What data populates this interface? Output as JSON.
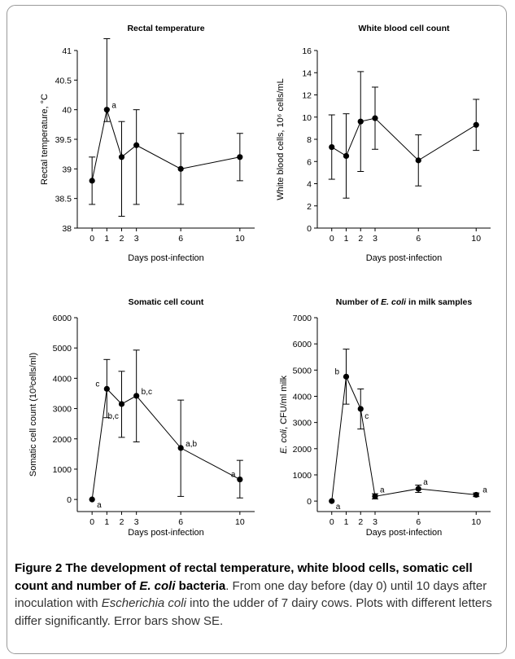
{
  "chart_data": [
    {
      "type": "line",
      "title": "Rectal temperature",
      "xlabel": "Days post-infection",
      "ylabel": "Rectal temperature, °C",
      "x": [
        0,
        1,
        2,
        3,
        6,
        10
      ],
      "x_ticks": [
        0,
        1,
        2,
        3,
        6,
        10
      ],
      "ylim": [
        38,
        41
      ],
      "y_ticks": [
        38,
        38.5,
        39,
        39.5,
        40,
        40.5,
        41
      ],
      "series": [
        {
          "values": [
            38.8,
            40.0,
            39.2,
            39.4,
            39.0,
            39.2
          ],
          "error_low": [
            38.4,
            39.8,
            38.2,
            38.4,
            38.4,
            38.8
          ],
          "error_high": [
            39.2,
            41.2,
            39.8,
            40.0,
            39.6,
            39.6
          ],
          "labels": [
            "",
            "a",
            "",
            "",
            "",
            ""
          ]
        }
      ]
    },
    {
      "type": "line",
      "title": "White blood cell count",
      "xlabel": "Days post-infection",
      "ylabel": "White blood cells, 10⁶ cells/mL",
      "x": [
        0,
        1,
        2,
        3,
        6,
        10
      ],
      "x_ticks": [
        0,
        1,
        2,
        3,
        6,
        10
      ],
      "ylim": [
        0,
        16
      ],
      "y_ticks": [
        0,
        2,
        4,
        6,
        8,
        10,
        12,
        14,
        16
      ],
      "series": [
        {
          "values": [
            7.3,
            6.5,
            9.6,
            9.9,
            6.1,
            9.3
          ],
          "error_low": [
            4.4,
            2.7,
            5.1,
            7.1,
            3.8,
            7.0
          ],
          "error_high": [
            10.2,
            10.3,
            14.1,
            12.7,
            8.4,
            11.6
          ],
          "labels": [
            "",
            "",
            "",
            "",
            "",
            ""
          ]
        }
      ]
    },
    {
      "type": "line",
      "title": "Somatic cell count",
      "xlabel": "Days post-infection",
      "ylabel": "Somatic cell count (10³cells/ml)",
      "x": [
        0,
        1,
        2,
        3,
        6,
        10
      ],
      "x_ticks": [
        0,
        1,
        2,
        3,
        6,
        10
      ],
      "ylim": [
        -400,
        6000
      ],
      "y_ticks": [
        0,
        1000,
        2000,
        3000,
        4000,
        5000,
        6000
      ],
      "series": [
        {
          "values": [
            0,
            3650,
            3150,
            3420,
            1700,
            660
          ],
          "error_low": [
            0,
            2700,
            2050,
            1900,
            100,
            50
          ],
          "error_high": [
            0,
            4620,
            4230,
            4930,
            3280,
            1290
          ],
          "labels": [
            "a",
            "c",
            "b,c",
            "b,c",
            "a,b",
            "a"
          ]
        }
      ]
    },
    {
      "type": "line",
      "title_parts": [
        "Number of ",
        "E. coli",
        " in milk samples"
      ],
      "xlabel": "Days post-infection",
      "ylabel_parts": [
        "E. coli",
        ", CFU/ml milk"
      ],
      "x": [
        0,
        1,
        2,
        3,
        6,
        10
      ],
      "x_ticks": [
        0,
        1,
        2,
        3,
        6,
        10
      ],
      "ylim": [
        -400,
        7000
      ],
      "y_ticks": [
        0,
        1000,
        2000,
        3000,
        4000,
        5000,
        6000,
        7000
      ],
      "series": [
        {
          "values": [
            0,
            4750,
            3520,
            180,
            470,
            240
          ],
          "error_low": [
            0,
            3700,
            2750,
            80,
            330,
            170
          ],
          "error_high": [
            0,
            5800,
            4280,
            280,
            610,
            310
          ],
          "labels": [
            "a",
            "b",
            "c",
            "a",
            "a",
            "a"
          ]
        }
      ]
    }
  ],
  "caption": {
    "lead_1": "Figure 2 The development of rectal temperature, white blood cells, somatic cell count and number of ",
    "lead_italic": "E. coli",
    "lead_2": " bacteria",
    "text_1": ". From one day before (day 0) until 10 days after inoculation with ",
    "text_italic": "Escherichia coli",
    "text_2": " into the udder of 7 dairy cows. Plots with different letters differ significantly. Error bars show SE."
  }
}
